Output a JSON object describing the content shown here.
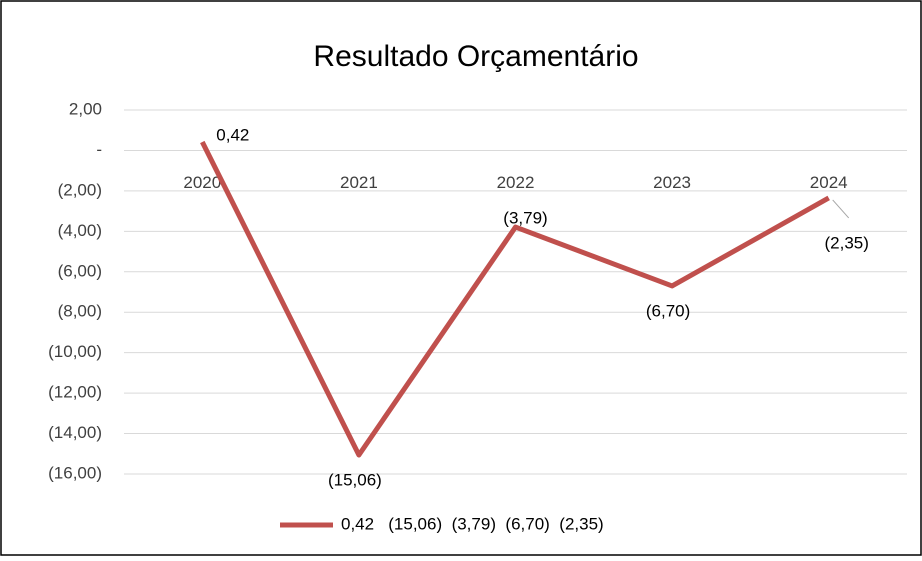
{
  "chart_data": {
    "type": "line",
    "title": "Resultado Orçamentário",
    "categories": [
      "2020",
      "2021",
      "2022",
      "2023",
      "2024"
    ],
    "series": [
      {
        "name": "0,42   (15,06)  (3,79)  (6,70)  (2,35)",
        "color": "#c0504d",
        "values": [
          0.42,
          -15.06,
          -3.79,
          -6.7,
          -2.35
        ],
        "value_labels": [
          "0,42",
          "(15,06)",
          "(3,79)",
          "(6,70)",
          "(2,35)"
        ]
      }
    ],
    "ylim": [
      -16,
      2
    ],
    "yticks": [
      {
        "value": 2,
        "label": "2,00"
      },
      {
        "value": 0,
        "label": "-"
      },
      {
        "value": -2,
        "label": "(2,00)"
      },
      {
        "value": -4,
        "label": "(4,00)"
      },
      {
        "value": -6,
        "label": "(6,00)"
      },
      {
        "value": -8,
        "label": "(8,00)"
      },
      {
        "value": -10,
        "label": "(10,00)"
      },
      {
        "value": -12,
        "label": "(12,00)"
      },
      {
        "value": -14,
        "label": "(14,00)"
      },
      {
        "value": -16,
        "label": "(16,00)"
      }
    ],
    "grid": true,
    "legend": "bottom"
  }
}
